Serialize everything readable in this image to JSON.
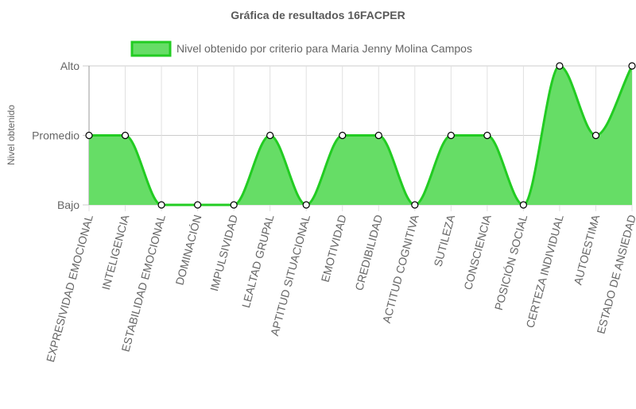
{
  "chart_data": {
    "type": "area",
    "title": "Gráfica de resultados 16FACPER",
    "ylabel": "Nivel obtenido",
    "xlabel": "",
    "y_levels": [
      "Bajo",
      "Promedio",
      "Alto"
    ],
    "ylim": [
      0,
      2
    ],
    "legend_position": "top",
    "grid": true,
    "categories": [
      "EXPRESIVIDAD EMOCIONAL",
      "INTELIGENCIA",
      "ESTABILIDAD EMOCIONAL",
      "DOMINACIÓN",
      "IMPULSIVIDAD",
      "LEALTAD GRUPAL",
      "APTITUD SITUACIONAL",
      "EMOTIVIDAD",
      "CREDIBILIDAD",
      "ACTITUD COGNITIVA",
      "SUTILEZA",
      "CONSCIENCIA",
      "POSICIÓN SOCIAL",
      "CERTEZA INDIVIDUAL",
      "AUTOESTIMA",
      "ESTADO DE ANSIEDAD"
    ],
    "series": [
      {
        "name": "Nivel obtenido por criterio para Maria Jenny Molina Campos",
        "values": [
          1,
          1,
          0,
          0,
          0,
          1,
          0,
          1,
          1,
          0,
          1,
          1,
          0,
          2,
          1,
          2
        ],
        "color": "#22cc22",
        "fill_color": "#66dd66"
      }
    ]
  }
}
